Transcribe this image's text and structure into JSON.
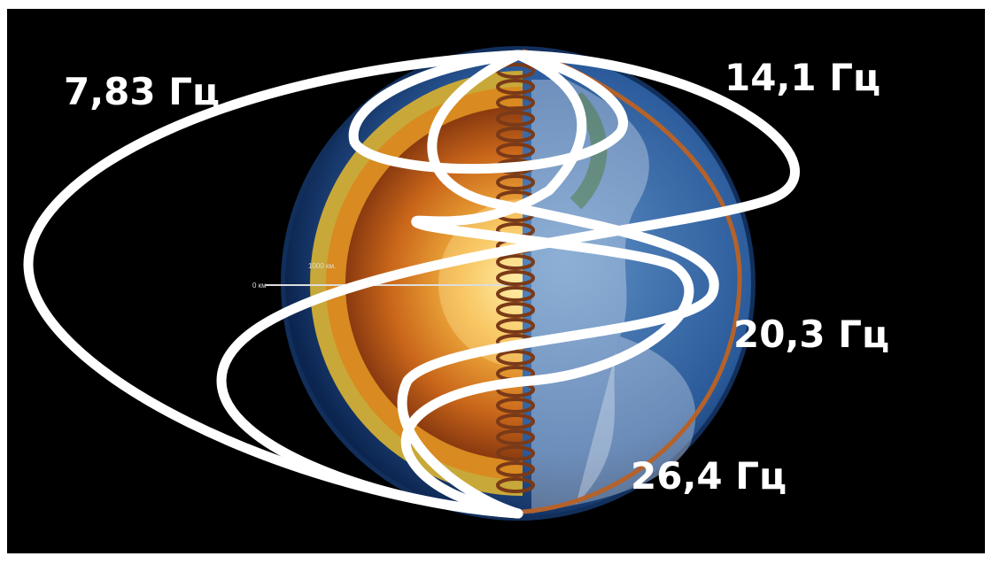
{
  "labels": {
    "f1": "7,83 Гц",
    "f2": "14,1 Гц",
    "f3": "20,3 Гц",
    "f4": "26,4 Гц"
  },
  "scale": {
    "start": "0 км",
    "mark": "1000 км."
  }
}
